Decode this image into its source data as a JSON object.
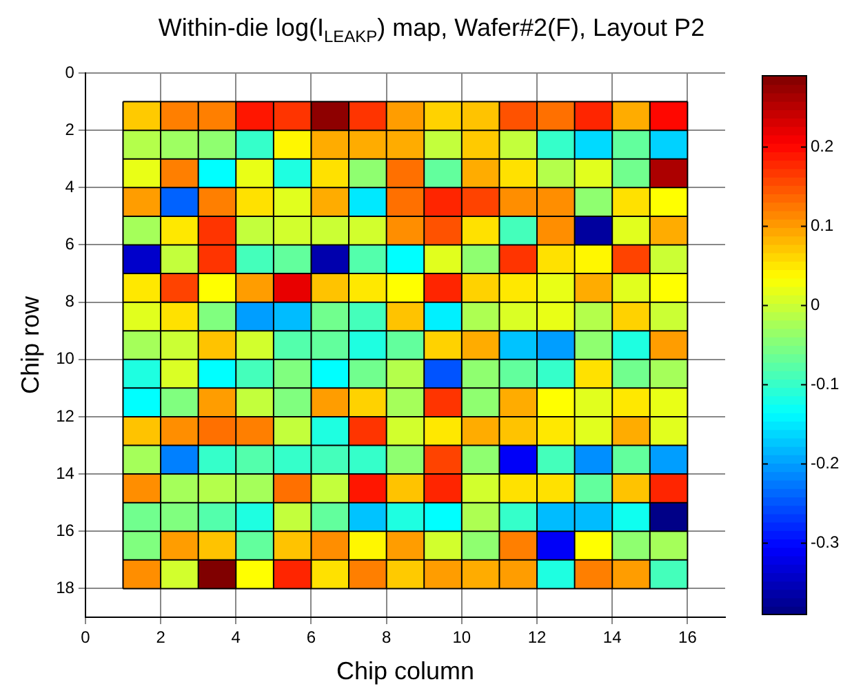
{
  "chart_data": {
    "type": "heatmap",
    "title": "Within-die log(I$_{LEAKP}$) map, Wafer#2(F), Layout P2",
    "xlabel": "Chip column",
    "ylabel": "Chip row",
    "x": [
      1.5,
      2.5,
      3.5,
      4.5,
      5.5,
      6.5,
      7.5,
      8.5,
      9.5,
      10.5,
      11.5,
      12.5,
      13.5,
      14.5,
      15.5
    ],
    "y": [
      1.5,
      2.5,
      3.5,
      4.5,
      5.5,
      6.5,
      7.5,
      8.5,
      9.5,
      10.5,
      11.5,
      12.5,
      13.5,
      14.5,
      15.5,
      16.5,
      17.5
    ],
    "cells": [
      [
        0.07,
        0.12,
        0.12,
        0.19,
        0.17,
        0.28,
        0.17,
        0.1,
        0.065,
        0.075,
        0.15,
        0.13,
        0.18,
        0.09,
        0.2
      ],
      [
        -0.015,
        -0.03,
        -0.04,
        -0.1,
        0.04,
        0.09,
        0.09,
        0.09,
        -0.005,
        0.07,
        -0.005,
        -0.1,
        -0.16,
        -0.07,
        -0.165
      ],
      [
        0.02,
        0.12,
        -0.135,
        0.02,
        -0.115,
        0.055,
        -0.04,
        0.13,
        -0.07,
        0.09,
        0.055,
        -0.015,
        0.015,
        -0.06,
        0.26
      ],
      [
        0.1,
        -0.24,
        0.12,
        0.055,
        0.015,
        0.09,
        -0.15,
        0.13,
        0.18,
        0.16,
        0.11,
        0.11,
        -0.04,
        0.055,
        0.035
      ],
      [
        -0.025,
        0.05,
        0.17,
        -0.005,
        0.005,
        0.0,
        0.005,
        0.11,
        0.15,
        0.055,
        -0.09,
        0.11,
        -0.37,
        0.015,
        0.09
      ],
      [
        -0.34,
        -0.005,
        0.17,
        -0.09,
        -0.07,
        -0.36,
        -0.08,
        -0.135,
        0.015,
        -0.04,
        0.17,
        0.055,
        0.04,
        0.16,
        0.0
      ],
      [
        0.05,
        0.16,
        0.035,
        0.1,
        0.22,
        0.075,
        0.05,
        0.035,
        0.18,
        0.065,
        0.05,
        0.02,
        0.09,
        0.015,
        0.035
      ],
      [
        0.015,
        0.055,
        -0.05,
        -0.2,
        -0.18,
        -0.06,
        -0.09,
        0.075,
        -0.145,
        -0.02,
        0.01,
        0.02,
        -0.015,
        0.065,
        0.0
      ],
      [
        -0.025,
        0.0,
        0.075,
        0.005,
        -0.08,
        -0.07,
        -0.115,
        -0.07,
        0.065,
        0.09,
        -0.175,
        -0.2,
        -0.04,
        -0.115,
        0.1
      ],
      [
        -0.115,
        0.01,
        -0.135,
        -0.09,
        -0.05,
        -0.135,
        -0.06,
        -0.015,
        -0.25,
        -0.04,
        -0.07,
        -0.1,
        0.055,
        -0.06,
        -0.025
      ],
      [
        -0.135,
        -0.05,
        0.1,
        -0.005,
        -0.05,
        0.1,
        0.065,
        -0.025,
        0.17,
        -0.04,
        0.09,
        0.035,
        0.015,
        0.05,
        0.02
      ],
      [
        0.075,
        0.11,
        0.13,
        0.12,
        -0.005,
        -0.115,
        0.17,
        0.005,
        0.05,
        0.09,
        0.075,
        0.05,
        0.015,
        0.09,
        0.015
      ],
      [
        -0.025,
        -0.22,
        -0.1,
        -0.08,
        -0.1,
        -0.09,
        -0.1,
        -0.04,
        0.16,
        -0.04,
        -0.31,
        -0.09,
        -0.21,
        -0.07,
        -0.2
      ],
      [
        0.11,
        -0.025,
        -0.015,
        -0.025,
        0.13,
        -0.005,
        0.19,
        0.075,
        0.18,
        0.005,
        0.055,
        0.055,
        -0.07,
        0.075,
        0.18
      ],
      [
        -0.06,
        -0.05,
        -0.08,
        -0.115,
        -0.005,
        -0.07,
        -0.175,
        -0.115,
        -0.135,
        -0.02,
        -0.1,
        -0.18,
        -0.18,
        -0.125,
        -0.385
      ],
      [
        -0.05,
        0.1,
        0.075,
        -0.07,
        0.075,
        0.11,
        0.04,
        0.1,
        0.005,
        -0.04,
        0.12,
        -0.31,
        0.035,
        -0.04,
        -0.025
      ],
      [
        0.11,
        0.005,
        0.29,
        0.035,
        0.18,
        0.055,
        0.12,
        0.07,
        0.1,
        0.09,
        0.1,
        -0.115,
        0.12,
        0.1,
        -0.09
      ]
    ],
    "xlim": [
      0,
      17
    ],
    "xticks": [
      0,
      2,
      4,
      6,
      8,
      10,
      12,
      14,
      16
    ],
    "ylim": [
      19,
      0
    ],
    "yticks": [
      0,
      2,
      4,
      6,
      8,
      10,
      12,
      14,
      16,
      18
    ],
    "clim": [
      -0.39,
      0.29
    ],
    "cticks": [
      -0.3,
      -0.2,
      -0.1,
      0,
      0.1,
      0.2
    ],
    "grid": true,
    "legend": false
  }
}
